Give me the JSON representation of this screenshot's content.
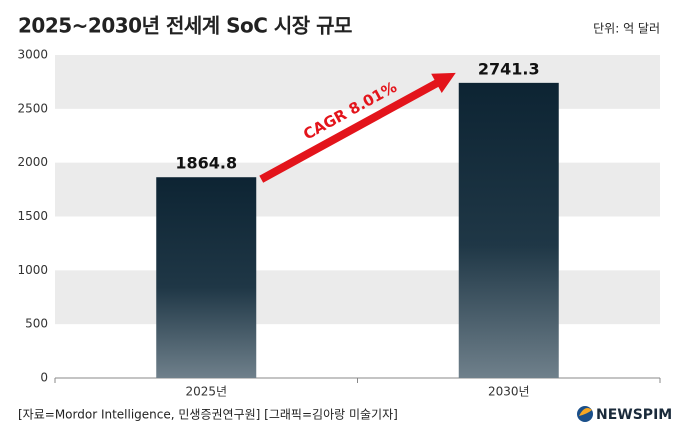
{
  "chart_data": {
    "type": "bar",
    "title": "2025~2030년 전세계 SoC 시장 규모",
    "unit": "단위: 억 달러",
    "categories": [
      "2025년",
      "2030년"
    ],
    "values": [
      1864.8,
      2741.3
    ],
    "color": "#0d2433",
    "ylim": [
      0,
      3000
    ],
    "yticks": [
      0,
      500,
      1000,
      1500,
      2000,
      2500,
      3000
    ],
    "grid": true,
    "annotation": "CAGR 8.01%",
    "annotation_color": "#e3141b",
    "source": "[자료=Mordor Intelligence, 민생증권연구원] [그래픽=김아랑 미술기자]",
    "logo": "NEWSPIM"
  }
}
